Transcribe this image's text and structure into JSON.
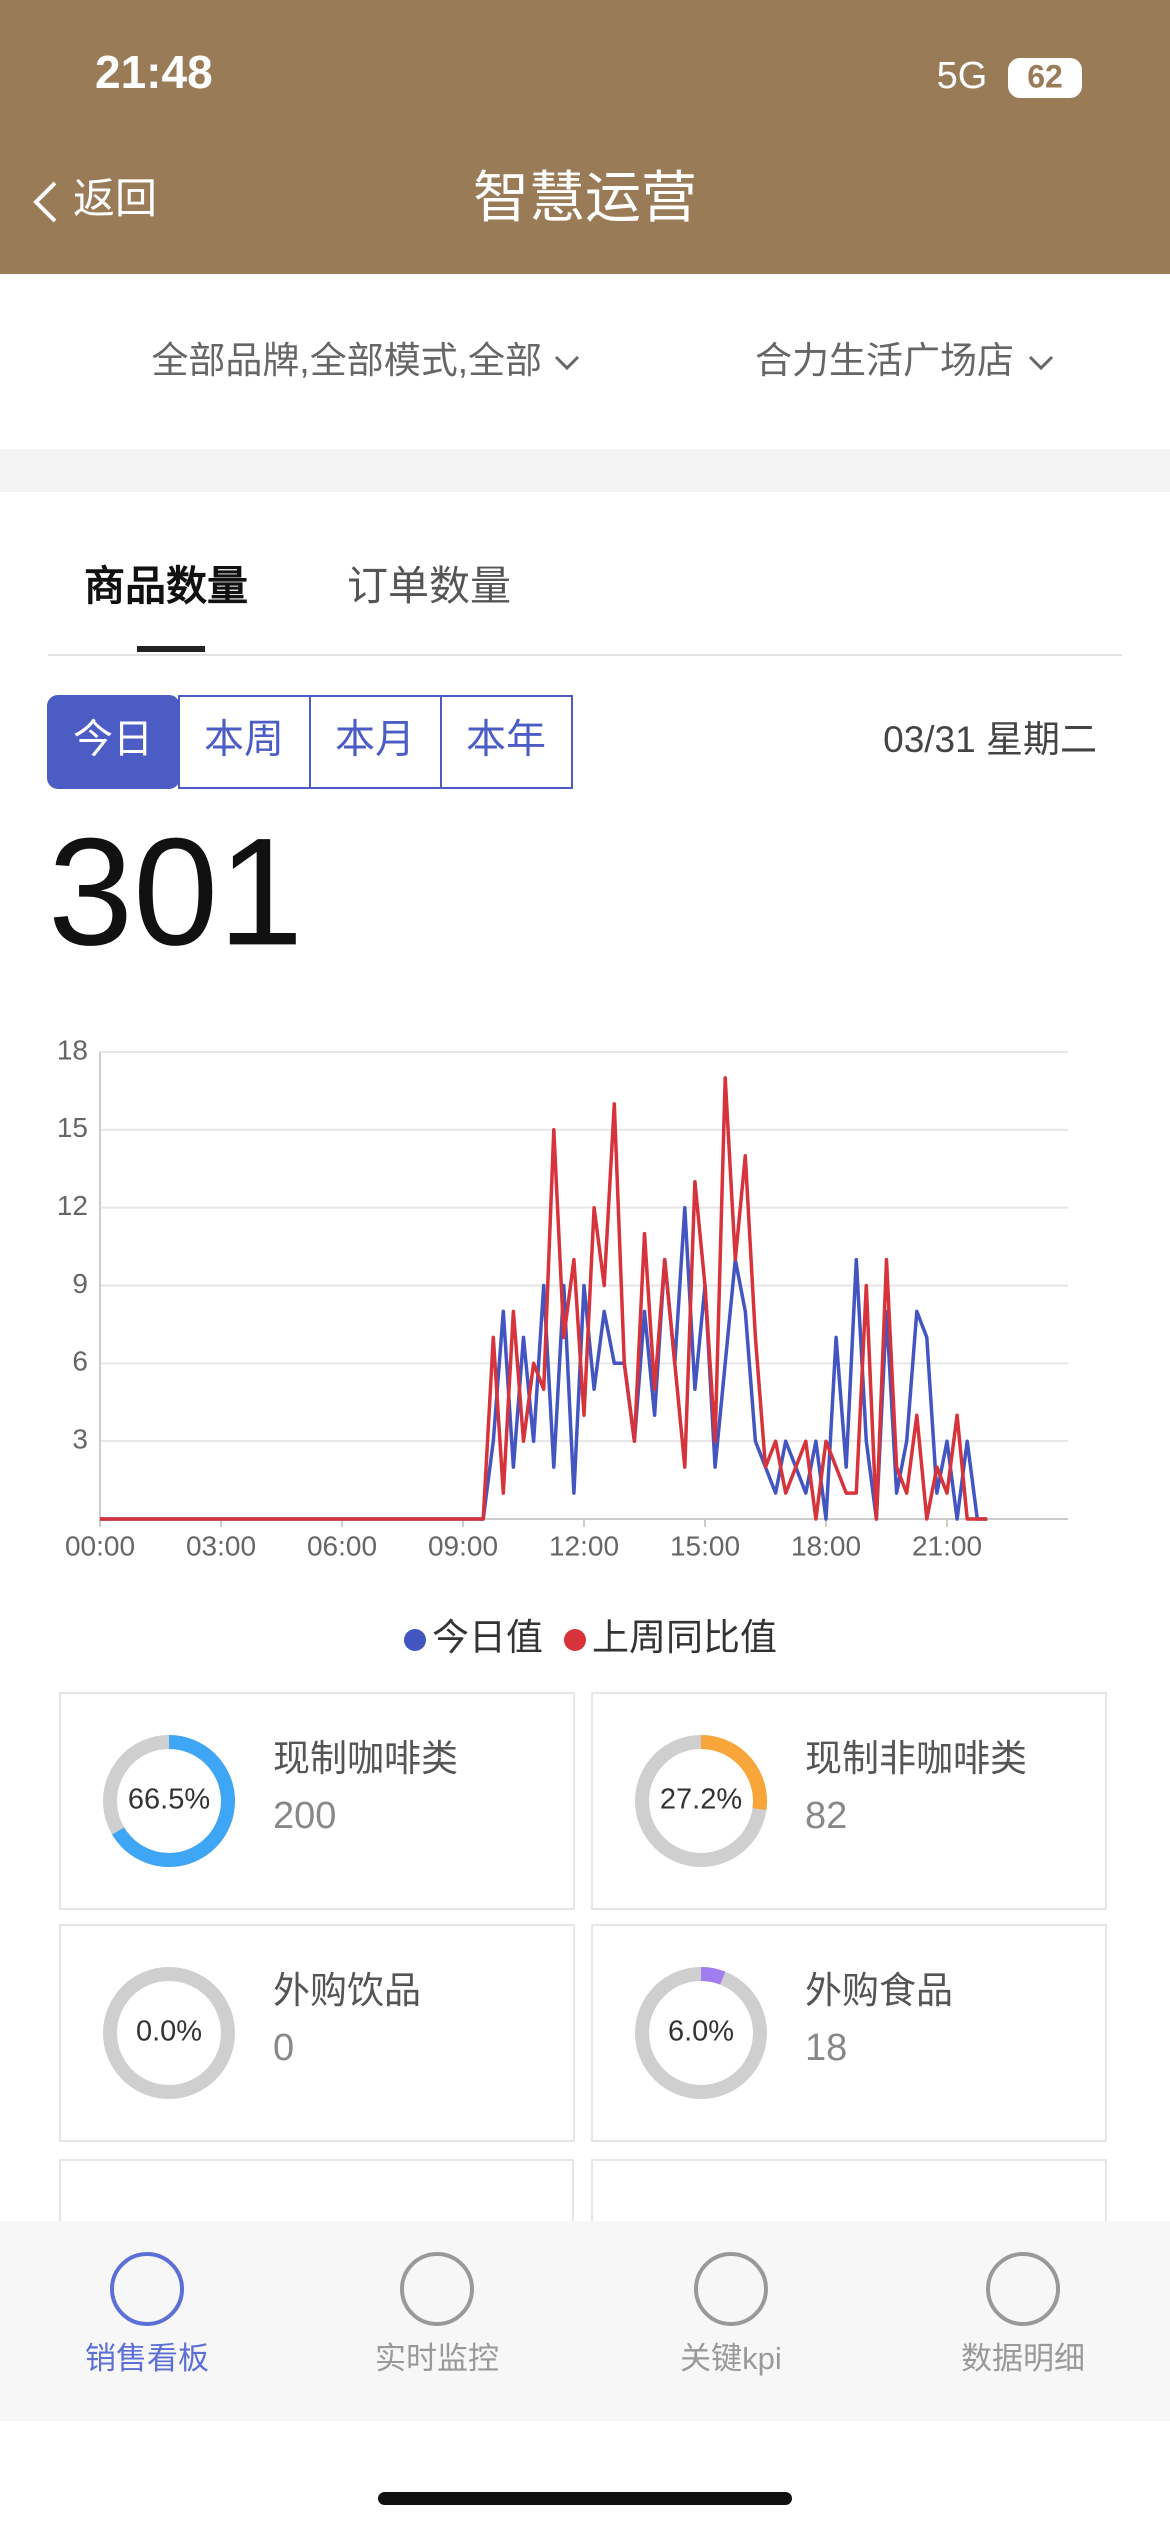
{
  "status_bar": {
    "time": "21:48",
    "network": "5G",
    "battery": "62"
  },
  "nav": {
    "back": "返回",
    "title": "智慧运营"
  },
  "filters": [
    "全部品牌,全部模式,全部",
    "合力生活广场店"
  ],
  "tabs": [
    "商品数量",
    "订单数量"
  ],
  "periods": [
    "今日",
    "本周",
    "本月",
    "本年"
  ],
  "date": "03/31 星期二",
  "total": 301,
  "chart_data": {
    "type": "line",
    "x": [
      0,
      9.5,
      9.75,
      10,
      10.25,
      10.5,
      10.75,
      11,
      11.25,
      11.5,
      11.75,
      12,
      12.25,
      12.5,
      12.75,
      13,
      13.25,
      13.5,
      13.75,
      14,
      14.25,
      14.5,
      14.75,
      15,
      15.25,
      15.5,
      15.75,
      16,
      16.25,
      16.5,
      16.75,
      17,
      17.25,
      17.5,
      17.75,
      18,
      18.25,
      18.5,
      18.75,
      19,
      19.25,
      19.5,
      19.75,
      20,
      20.25,
      20.5,
      20.75,
      21,
      21.25,
      21.5,
      21.75,
      22
    ],
    "series": [
      {
        "name": "今日值",
        "color": "#4355c0",
        "values": [
          0,
          0,
          3,
          8,
          2,
          7,
          3,
          9,
          2,
          9,
          1,
          9,
          5,
          8,
          6,
          6,
          3,
          8,
          4,
          10,
          6,
          12,
          5,
          9,
          2,
          6,
          10,
          8,
          3,
          2,
          1,
          3,
          2,
          1,
          3,
          0,
          7,
          2,
          10,
          3,
          0,
          8,
          1,
          3,
          8,
          7,
          1,
          3,
          0,
          3,
          0,
          0
        ]
      },
      {
        "name": "上周同比值",
        "color": "#d6333b",
        "values": [
          0,
          0,
          7,
          1,
          8,
          3,
          6,
          5,
          15,
          7,
          10,
          4,
          12,
          9,
          16,
          6,
          3,
          11,
          5,
          10,
          6,
          2,
          13,
          9,
          3,
          17,
          10,
          14,
          7,
          2,
          3,
          1,
          2,
          3,
          0,
          3,
          2,
          1,
          1,
          9,
          0,
          10,
          2,
          1,
          4,
          0,
          2,
          1,
          4,
          0,
          0,
          0
        ]
      }
    ],
    "xlim": [
      0,
      24
    ],
    "xticks": [
      {
        "value": 0,
        "label": "00:00"
      },
      {
        "value": 3,
        "label": "03:00"
      },
      {
        "value": 6,
        "label": "06:00"
      },
      {
        "value": 9,
        "label": "09:00"
      },
      {
        "value": 12,
        "label": "12:00"
      },
      {
        "value": 15,
        "label": "15:00"
      },
      {
        "value": 18,
        "label": "18:00"
      },
      {
        "value": 21,
        "label": "21:00"
      }
    ],
    "ylim": [
      0,
      18
    ],
    "yticks": [
      3,
      6,
      9,
      12,
      15,
      18
    ],
    "grid": true
  },
  "cards": [
    {
      "name": "现制咖啡类",
      "value": 200,
      "percent": 66.5,
      "percent_label": "66.5%",
      "color": "#3ea6f5"
    },
    {
      "name": "现制非咖啡类",
      "value": 82,
      "percent": 27.2,
      "percent_label": "27.2%",
      "color": "#f8a63a"
    },
    {
      "name": "外购饮品",
      "value": 0,
      "percent": 0,
      "percent_label": "0.0%",
      "color": "#3ea6f5"
    },
    {
      "name": "外购食品",
      "value": 18,
      "percent": 6,
      "percent_label": "6.0%",
      "color": "#a07ef0"
    }
  ],
  "bottom_nav": [
    "销售看板",
    "实时监控",
    "关键kpi",
    "数据明细"
  ]
}
